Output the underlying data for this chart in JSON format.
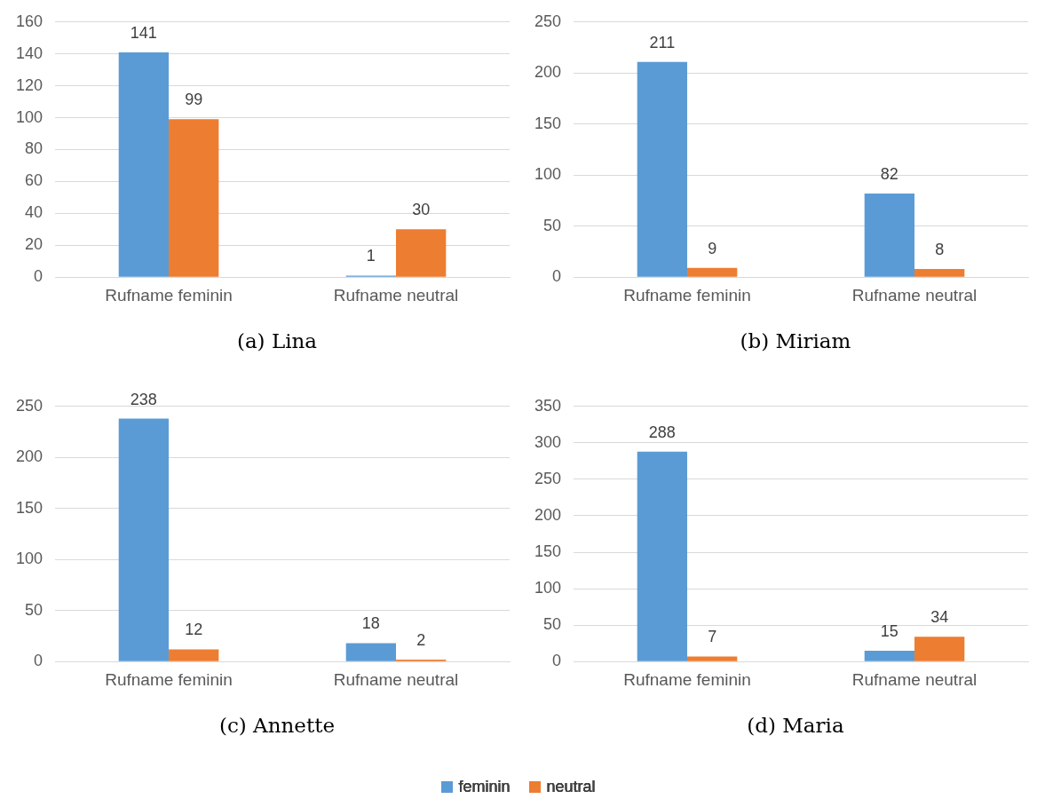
{
  "chart_data": [
    {
      "type": "bar",
      "title": "(a) Lina",
      "categories": [
        "Rufname feminin",
        "Rufname neutral"
      ],
      "series": [
        {
          "name": "feminin",
          "color": "#5b9bd5",
          "values": [
            141,
            1
          ]
        },
        {
          "name": "neutral",
          "color": "#ed7d31",
          "values": [
            99,
            30
          ]
        }
      ],
      "ylim": [
        0,
        160
      ],
      "yticks": [
        0,
        20,
        40,
        60,
        80,
        100,
        120,
        140,
        160
      ],
      "grid": "y",
      "data_labels": true,
      "legend": "bottom"
    },
    {
      "type": "bar",
      "title": "(b) Miriam",
      "categories": [
        "Rufname feminin",
        "Rufname neutral"
      ],
      "series": [
        {
          "name": "feminin",
          "color": "#5b9bd5",
          "values": [
            211,
            82
          ]
        },
        {
          "name": "neutral",
          "color": "#ed7d31",
          "values": [
            9,
            8
          ]
        }
      ],
      "ylim": [
        0,
        250
      ],
      "yticks": [
        0,
        50,
        100,
        150,
        200,
        250
      ],
      "grid": "y",
      "data_labels": true,
      "legend": "bottom"
    },
    {
      "type": "bar",
      "title": "(c) Annette",
      "categories": [
        "Rufname feminin",
        "Rufname neutral"
      ],
      "series": [
        {
          "name": "feminin",
          "color": "#5b9bd5",
          "values": [
            238,
            18
          ]
        },
        {
          "name": "neutral",
          "color": "#ed7d31",
          "values": [
            12,
            2
          ]
        }
      ],
      "ylim": [
        0,
        250
      ],
      "yticks": [
        0,
        50,
        100,
        150,
        200,
        250
      ],
      "grid": "y",
      "data_labels": true,
      "legend": "bottom"
    },
    {
      "type": "bar",
      "title": "(d) Maria",
      "categories": [
        "Rufname feminin",
        "Rufname neutral"
      ],
      "series": [
        {
          "name": "feminin",
          "color": "#5b9bd5",
          "values": [
            288,
            15
          ]
        },
        {
          "name": "neutral",
          "color": "#ed7d31",
          "values": [
            7,
            34
          ]
        }
      ],
      "ylim": [
        0,
        350
      ],
      "yticks": [
        0,
        50,
        100,
        150,
        200,
        250,
        300,
        350
      ],
      "grid": "y",
      "data_labels": true,
      "legend": "bottom"
    }
  ]
}
